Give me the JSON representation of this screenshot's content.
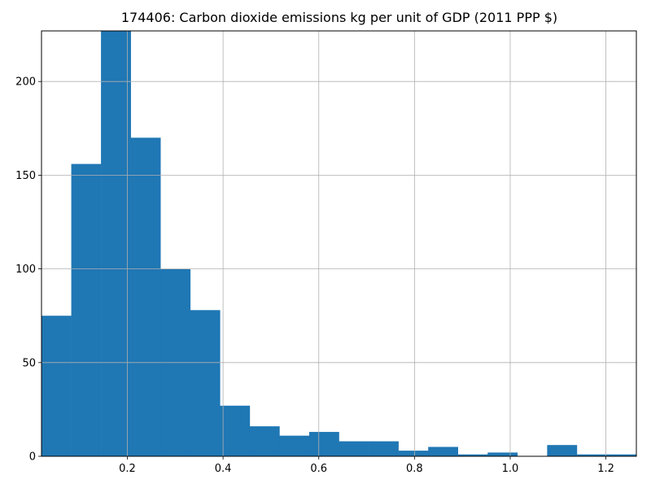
{
  "chart_data": {
    "type": "bar",
    "title": "174406: Carbon dioxide emissions kg per unit of GDP (2011 PPP $)",
    "xlabel": "",
    "ylabel": "",
    "xlim": [
      0.0206,
      1.2636
    ],
    "ylim": [
      0,
      227
    ],
    "grid": true,
    "bar_color": "#1f77b4",
    "x_ticks": [
      0.2,
      0.4,
      0.6,
      0.8,
      1.0,
      1.2
    ],
    "x_tick_labels": [
      "0.2",
      "0.4",
      "0.6",
      "0.8",
      "1.0",
      "1.2"
    ],
    "y_ticks": [
      0,
      50,
      100,
      150,
      200
    ],
    "y_tick_labels": [
      "0",
      "50",
      "100",
      "150",
      "200"
    ],
    "bins": [
      {
        "x0": 0.0206,
        "x1": 0.0828,
        "count": 75
      },
      {
        "x0": 0.0828,
        "x1": 0.1449,
        "count": 156
      },
      {
        "x0": 0.1449,
        "x1": 0.2071,
        "count": 227
      },
      {
        "x0": 0.2071,
        "x1": 0.2692,
        "count": 170
      },
      {
        "x0": 0.2692,
        "x1": 0.3314,
        "count": 100
      },
      {
        "x0": 0.3314,
        "x1": 0.3935,
        "count": 78
      },
      {
        "x0": 0.3935,
        "x1": 0.4557,
        "count": 27
      },
      {
        "x0": 0.4557,
        "x1": 0.5178,
        "count": 16
      },
      {
        "x0": 0.5178,
        "x1": 0.58,
        "count": 11
      },
      {
        "x0": 0.58,
        "x1": 0.6421,
        "count": 13
      },
      {
        "x0": 0.6421,
        "x1": 0.7043,
        "count": 8
      },
      {
        "x0": 0.7043,
        "x1": 0.7664,
        "count": 8
      },
      {
        "x0": 0.7664,
        "x1": 0.8286,
        "count": 3
      },
      {
        "x0": 0.8286,
        "x1": 0.8907,
        "count": 5
      },
      {
        "x0": 0.8907,
        "x1": 0.9529,
        "count": 1
      },
      {
        "x0": 0.9529,
        "x1": 1.015,
        "count": 2
      },
      {
        "x0": 1.015,
        "x1": 1.0772,
        "count": 0
      },
      {
        "x0": 1.0772,
        "x1": 1.1393,
        "count": 6
      },
      {
        "x0": 1.1393,
        "x1": 1.2015,
        "count": 1
      },
      {
        "x0": 1.2015,
        "x1": 1.2636,
        "count": 1
      }
    ]
  }
}
